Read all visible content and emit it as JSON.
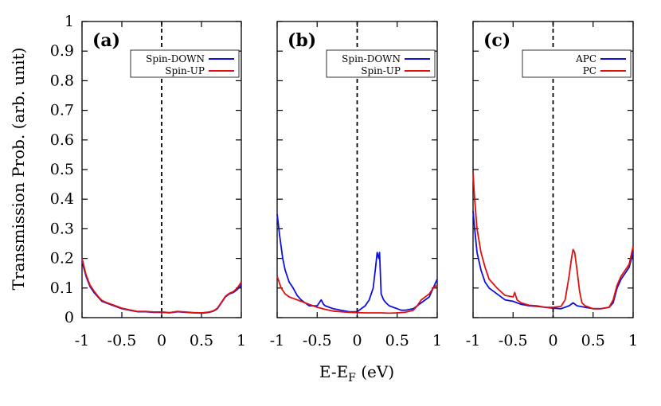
{
  "chart_data": [
    {
      "type": "line",
      "panel_label": "(a)",
      "xlim": [
        -1,
        1
      ],
      "ylim": [
        0,
        1
      ],
      "x_ticks": [
        "-1",
        "-0.5",
        "0",
        "0.5",
        "1"
      ],
      "y_ticks": [
        "0",
        "0.1",
        "0.2",
        "0.3",
        "0.4",
        "0.5",
        "0.6",
        "0.7",
        "0.8",
        "0.9",
        "1"
      ],
      "fermi_level": 0,
      "legend_position": "top-right",
      "series": [
        {
          "name": "Spin-DOWN",
          "color": "#1010dd",
          "x": [
            -1.0,
            -0.95,
            -0.9,
            -0.85,
            -0.8,
            -0.75,
            -0.7,
            -0.6,
            -0.5,
            -0.4,
            -0.3,
            -0.2,
            -0.1,
            0.0,
            0.1,
            0.2,
            0.3,
            0.4,
            0.5,
            0.6,
            0.65,
            0.7,
            0.75,
            0.8,
            0.85,
            0.9,
            0.95,
            1.0
          ],
          "y": [
            0.19,
            0.14,
            0.105,
            0.085,
            0.07,
            0.055,
            0.05,
            0.04,
            0.03,
            0.025,
            0.02,
            0.02,
            0.018,
            0.018,
            0.016,
            0.02,
            0.018,
            0.016,
            0.015,
            0.018,
            0.022,
            0.03,
            0.05,
            0.07,
            0.08,
            0.085,
            0.095,
            0.11
          ]
        },
        {
          "name": "Spin-UP",
          "color": "#e01010",
          "x": [
            -1.0,
            -0.95,
            -0.9,
            -0.85,
            -0.8,
            -0.75,
            -0.7,
            -0.6,
            -0.5,
            -0.4,
            -0.3,
            -0.2,
            -0.1,
            0.0,
            0.1,
            0.2,
            0.3,
            0.4,
            0.5,
            0.6,
            0.65,
            0.7,
            0.75,
            0.8,
            0.85,
            0.9,
            0.95,
            1.0
          ],
          "y": [
            0.2,
            0.145,
            0.11,
            0.09,
            0.072,
            0.058,
            0.052,
            0.042,
            0.032,
            0.026,
            0.021,
            0.021,
            0.019,
            0.019,
            0.017,
            0.021,
            0.019,
            0.017,
            0.016,
            0.019,
            0.023,
            0.032,
            0.052,
            0.072,
            0.082,
            0.088,
            0.1,
            0.12
          ]
        }
      ]
    },
    {
      "type": "line",
      "panel_label": "(b)",
      "xlim": [
        -1,
        1
      ],
      "ylim": [
        0,
        1
      ],
      "x_ticks": [
        "-1",
        "-0.5",
        "0",
        "0.5",
        "1"
      ],
      "fermi_level": 0,
      "legend_position": "top-right",
      "series": [
        {
          "name": "Spin-DOWN",
          "color": "#1010dd",
          "x": [
            -1.0,
            -0.97,
            -0.93,
            -0.9,
            -0.85,
            -0.8,
            -0.75,
            -0.7,
            -0.6,
            -0.5,
            -0.45,
            -0.42,
            -0.4,
            -0.3,
            -0.2,
            -0.1,
            0.0,
            0.05,
            0.1,
            0.15,
            0.2,
            0.23,
            0.25,
            0.27,
            0.28,
            0.3,
            0.33,
            0.36,
            0.4,
            0.5,
            0.55,
            0.6,
            0.7,
            0.8,
            0.9,
            0.95,
            1.0
          ],
          "y": [
            0.35,
            0.28,
            0.2,
            0.16,
            0.12,
            0.1,
            0.075,
            0.06,
            0.04,
            0.04,
            0.06,
            0.045,
            0.04,
            0.03,
            0.025,
            0.02,
            0.02,
            0.03,
            0.04,
            0.06,
            0.1,
            0.17,
            0.22,
            0.2,
            0.22,
            0.08,
            0.06,
            0.05,
            0.04,
            0.03,
            0.025,
            0.025,
            0.03,
            0.05,
            0.07,
            0.1,
            0.13
          ]
        },
        {
          "name": "Spin-UP",
          "color": "#e01010",
          "x": [
            -1.0,
            -0.95,
            -0.9,
            -0.85,
            -0.8,
            -0.7,
            -0.6,
            -0.5,
            -0.4,
            -0.3,
            -0.2,
            -0.1,
            0.0,
            0.1,
            0.2,
            0.3,
            0.4,
            0.5,
            0.6,
            0.7,
            0.75,
            0.8,
            0.9,
            0.95,
            1.0
          ],
          "y": [
            0.14,
            0.1,
            0.08,
            0.07,
            0.065,
            0.055,
            0.045,
            0.035,
            0.028,
            0.022,
            0.02,
            0.018,
            0.017,
            0.016,
            0.016,
            0.016,
            0.015,
            0.016,
            0.018,
            0.025,
            0.04,
            0.06,
            0.08,
            0.1,
            0.11
          ]
        }
      ]
    },
    {
      "type": "line",
      "panel_label": "(c)",
      "xlim": [
        -1,
        1
      ],
      "ylim": [
        0,
        1
      ],
      "x_ticks": [
        "-1",
        "-0.5",
        "0",
        "0.5",
        "1"
      ],
      "fermi_level": 0,
      "legend_position": "top-right",
      "series": [
        {
          "name": "APC",
          "color": "#1010dd",
          "x": [
            -1.0,
            -0.98,
            -0.95,
            -0.9,
            -0.85,
            -0.8,
            -0.7,
            -0.6,
            -0.5,
            -0.4,
            -0.3,
            -0.2,
            -0.1,
            0.0,
            0.1,
            0.2,
            0.25,
            0.3,
            0.4,
            0.5,
            0.6,
            0.7,
            0.75,
            0.8,
            0.85,
            0.9,
            0.95,
            1.0
          ],
          "y": [
            0.36,
            0.3,
            0.22,
            0.16,
            0.12,
            0.1,
            0.08,
            0.06,
            0.055,
            0.045,
            0.04,
            0.038,
            0.035,
            0.032,
            0.03,
            0.04,
            0.05,
            0.04,
            0.035,
            0.03,
            0.03,
            0.035,
            0.05,
            0.1,
            0.13,
            0.15,
            0.17,
            0.22
          ]
        },
        {
          "name": "PC",
          "color": "#e01010",
          "x": [
            -1.0,
            -0.98,
            -0.95,
            -0.9,
            -0.85,
            -0.8,
            -0.7,
            -0.6,
            -0.5,
            -0.48,
            -0.45,
            -0.4,
            -0.3,
            -0.2,
            -0.1,
            0.0,
            0.1,
            0.15,
            0.2,
            0.23,
            0.25,
            0.27,
            0.3,
            0.33,
            0.36,
            0.4,
            0.5,
            0.6,
            0.7,
            0.75,
            0.8,
            0.85,
            0.9,
            0.95,
            1.0
          ],
          "y": [
            0.49,
            0.4,
            0.3,
            0.22,
            0.17,
            0.13,
            0.1,
            0.075,
            0.07,
            0.085,
            0.06,
            0.05,
            0.042,
            0.04,
            0.035,
            0.035,
            0.038,
            0.06,
            0.14,
            0.2,
            0.23,
            0.22,
            0.16,
            0.09,
            0.05,
            0.04,
            0.03,
            0.03,
            0.035,
            0.06,
            0.11,
            0.14,
            0.16,
            0.18,
            0.24
          ]
        }
      ]
    }
  ],
  "shared": {
    "ylabel": "Transmission Prob. (arb. unit)",
    "xlabel_main": "E-E",
    "xlabel_sub": "F",
    "xlabel_unit": " (eV)"
  }
}
